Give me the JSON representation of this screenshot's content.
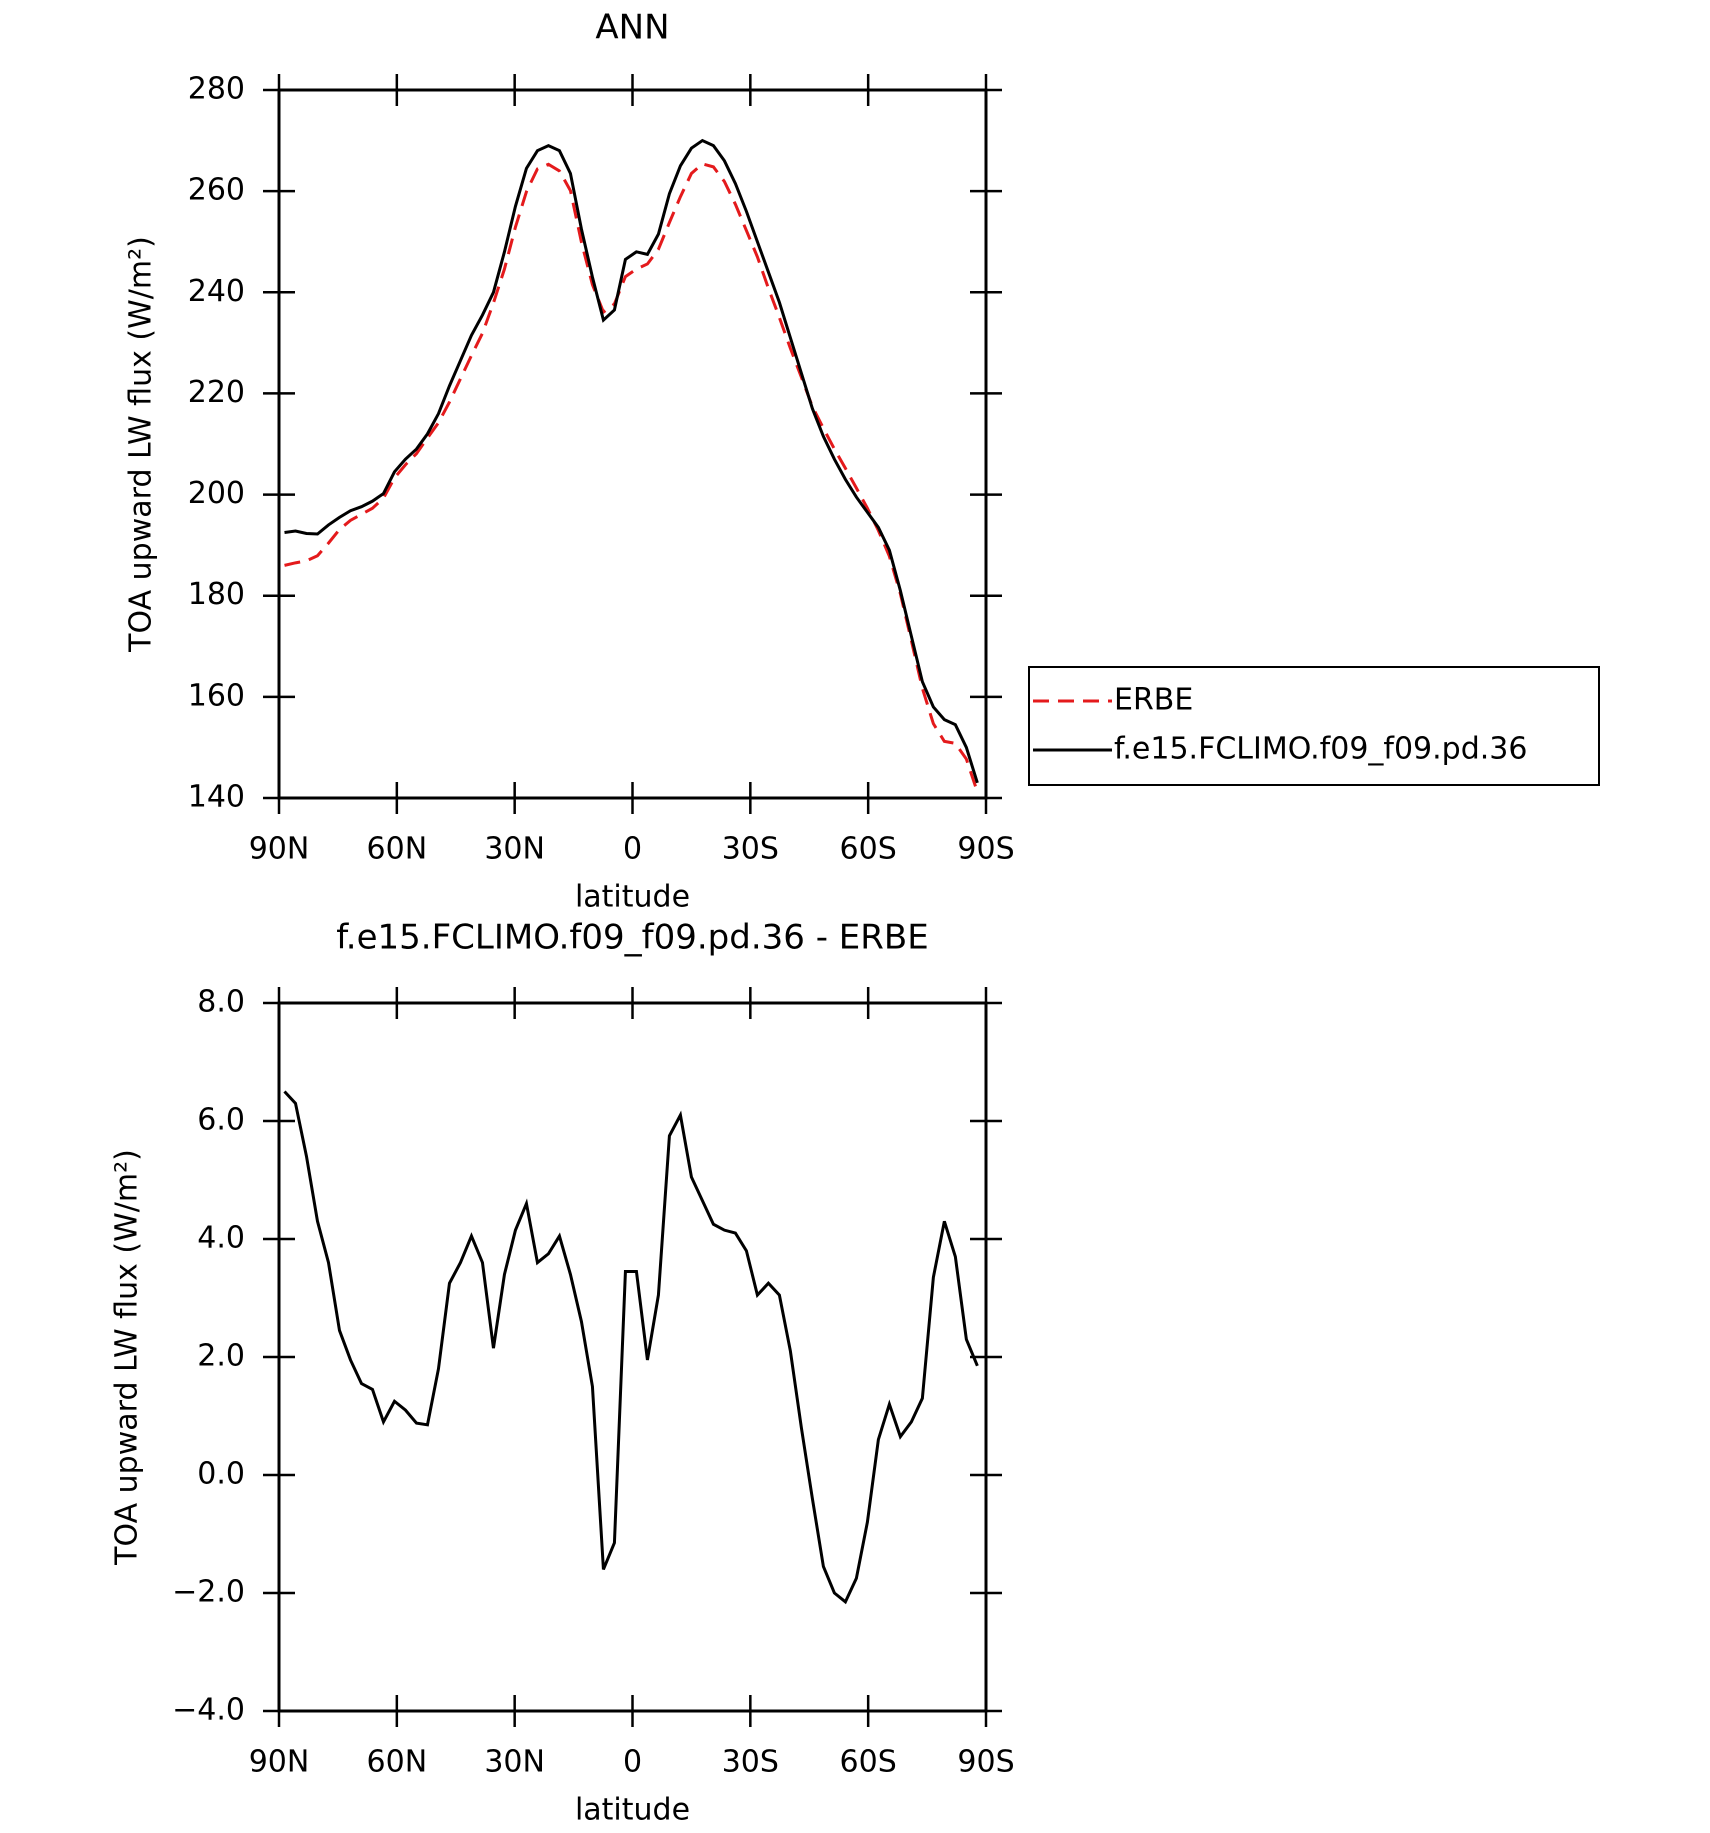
{
  "chart_data": [
    {
      "type": "line",
      "title": "ANN",
      "x": [
        88.6,
        85.8,
        83.0,
        80.2,
        77.4,
        74.6,
        71.8,
        69.0,
        66.2,
        63.4,
        60.6,
        57.8,
        55.0,
        52.2,
        49.4,
        46.6,
        43.8,
        41.0,
        38.2,
        35.4,
        32.6,
        29.8,
        27.0,
        24.2,
        21.4,
        18.6,
        15.8,
        13.0,
        10.2,
        7.4,
        4.6,
        1.8,
        -1.0,
        -3.8,
        -6.6,
        -9.4,
        -12.2,
        -15.0,
        -17.8,
        -20.6,
        -23.4,
        -26.2,
        -29.0,
        -31.8,
        -34.6,
        -37.4,
        -40.2,
        -43.0,
        -45.8,
        -48.6,
        -51.4,
        -54.2,
        -57.0,
        -59.8,
        -62.6,
        -65.4,
        -68.2,
        -71.0,
        -73.8,
        -76.6,
        -79.4,
        -82.2,
        -85.0,
        -87.8
      ],
      "series": [
        {
          "name": "ERBE",
          "color": "#e41a1c",
          "dashed": true,
          "values": [
            186.0,
            186.5,
            186.9,
            187.9,
            190.4,
            193.1,
            194.9,
            196.1,
            197.3,
            199.3,
            203.3,
            205.9,
            208.1,
            211.2,
            214.2,
            218.3,
            222.9,
            227.5,
            231.9,
            237.9,
            244.6,
            252.9,
            259.9,
            264.4,
            265.3,
            264.0,
            260.1,
            249.9,
            241.5,
            236.1,
            237.7,
            243.1,
            244.6,
            245.6,
            248.5,
            253.8,
            258.9,
            263.5,
            265.4,
            264.8,
            261.9,
            257.4,
            252.2,
            247.0,
            240.8,
            235.0,
            228.9,
            223.2,
            217.4,
            213.1,
            209.0,
            205.2,
            201.3,
            197.3,
            192.9,
            187.8,
            180.4,
            171.1,
            161.7,
            154.7,
            151.2,
            150.8,
            147.7,
            141.2
          ]
        },
        {
          "name": "f.e15.FCLIMO.f09_f09.pd.36",
          "color": "#000000",
          "dashed": false,
          "values": [
            192.5,
            192.8,
            192.3,
            192.2,
            194.0,
            195.5,
            196.8,
            197.6,
            198.7,
            200.2,
            204.5,
            207.0,
            209.0,
            212.0,
            216.0,
            221.5,
            226.5,
            231.5,
            235.5,
            240.0,
            248.0,
            257.0,
            264.5,
            268.0,
            269.0,
            268.0,
            263.5,
            252.5,
            243.0,
            234.5,
            236.5,
            246.5,
            248.0,
            247.5,
            251.5,
            259.5,
            265.0,
            268.5,
            270.0,
            269.0,
            266.0,
            261.5,
            256.0,
            250.0,
            244.0,
            238.0,
            231.0,
            224.0,
            217.0,
            211.5,
            207.0,
            203.0,
            199.5,
            196.5,
            193.5,
            189.0,
            181.0,
            172.0,
            163.0,
            158.0,
            155.5,
            154.5,
            150.0,
            143.0
          ]
        }
      ],
      "xlim": [
        90,
        -90
      ],
      "xticks": [
        {
          "value": 90,
          "label": "90N"
        },
        {
          "value": 60,
          "label": "60N"
        },
        {
          "value": 30,
          "label": "30N"
        },
        0,
        {
          "value": -30,
          "label": "30S"
        },
        {
          "value": -60,
          "label": "60S"
        },
        {
          "value": -90,
          "label": "90S"
        }
      ],
      "ylim": [
        140,
        280
      ],
      "yticks": [
        140,
        160,
        180,
        200,
        220,
        240,
        260,
        280
      ],
      "xlabel": "latitude",
      "ylabel": "TOA upward LW flux (W/m²)",
      "legend": "right"
    },
    {
      "type": "line",
      "title": "f.e15.FCLIMO.f09_f09.pd.36 - ERBE",
      "x": [
        88.6,
        85.8,
        83.0,
        80.2,
        77.4,
        74.6,
        71.8,
        69.0,
        66.2,
        63.4,
        60.6,
        57.8,
        55.0,
        52.2,
        49.4,
        46.6,
        43.8,
        41.0,
        38.2,
        35.4,
        32.6,
        29.8,
        27.0,
        24.2,
        21.4,
        18.6,
        15.8,
        13.0,
        10.2,
        7.4,
        4.6,
        1.8,
        -1.0,
        -3.8,
        -6.6,
        -9.4,
        -12.2,
        -15.0,
        -17.8,
        -20.6,
        -23.4,
        -26.2,
        -29.0,
        -31.8,
        -34.6,
        -37.4,
        -40.2,
        -43.0,
        -45.8,
        -48.6,
        -51.4,
        -54.2,
        -57.0,
        -59.8,
        -62.6,
        -65.4,
        -68.2,
        -71.0,
        -73.8,
        -76.6,
        -79.4,
        -82.2,
        -85.0,
        -87.8
      ],
      "color": "#000000",
      "values": [
        6.5,
        6.3,
        5.4,
        4.3,
        3.6,
        2.45,
        1.95,
        1.55,
        1.45,
        0.9,
        1.25,
        1.1,
        0.88,
        0.85,
        1.8,
        3.25,
        3.6,
        4.05,
        3.6,
        2.15,
        3.4,
        4.15,
        4.6,
        3.6,
        3.75,
        4.05,
        3.4,
        2.6,
        1.5,
        -1.6,
        -1.15,
        3.45,
        3.45,
        1.95,
        3.05,
        5.75,
        6.1,
        5.05,
        4.65,
        4.25,
        4.15,
        4.1,
        3.8,
        3.05,
        3.25,
        3.05,
        2.1,
        0.8,
        -0.4,
        -1.55,
        -2.0,
        -2.15,
        -1.75,
        -0.8,
        0.6,
        1.2,
        0.65,
        0.9,
        1.3,
        3.35,
        4.3,
        3.7,
        2.3,
        1.85
      ],
      "xlim": [
        90,
        -90
      ],
      "xticks": [
        {
          "value": 90,
          "label": "90N"
        },
        {
          "value": 60,
          "label": "60N"
        },
        {
          "value": 30,
          "label": "30N"
        },
        0,
        {
          "value": -30,
          "label": "30S"
        },
        {
          "value": -60,
          "label": "60S"
        },
        {
          "value": -90,
          "label": "90S"
        }
      ],
      "ylim": [
        -4,
        8
      ],
      "yticks": [
        {
          "value": -4,
          "label": "−4.0"
        },
        {
          "value": -2,
          "label": "−2.0"
        },
        {
          "value": 0,
          "label": "0.0"
        },
        {
          "value": 2,
          "label": "2.0"
        },
        {
          "value": 4,
          "label": "4.0"
        },
        {
          "value": 6,
          "label": "6.0"
        },
        {
          "value": 8,
          "label": "8.0"
        }
      ],
      "xlabel": "latitude",
      "ylabel": "TOA upward LW flux (W/m²)"
    }
  ]
}
